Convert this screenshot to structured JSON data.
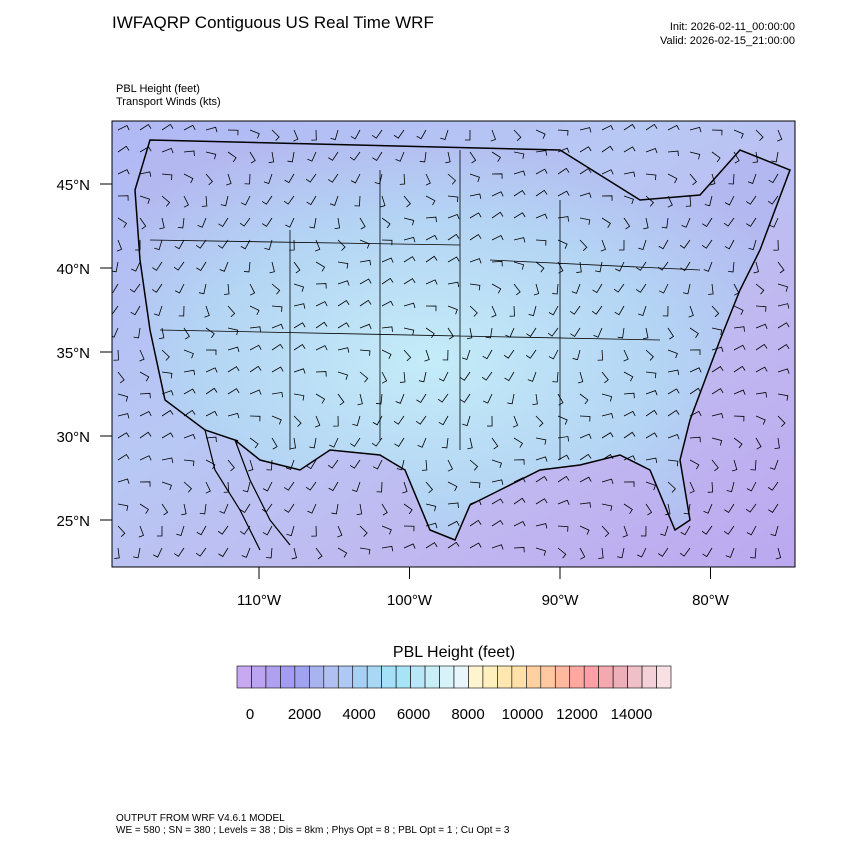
{
  "header": {
    "title": "IWFAQRP Contiguous US Real Time WRF",
    "init": "Init: 2026-02-11_00:00:00",
    "valid": "Valid: 2026-02-15_21:00:00"
  },
  "fields": {
    "primary": "PBL Height   (feet)",
    "secondary": "Transport Winds   (kts)"
  },
  "map": {
    "lat_labels": [
      "45°N",
      "40°N",
      "35°N",
      "30°N",
      "25°N"
    ],
    "lon_labels": [
      "110°W",
      "100°W",
      "90°W",
      "80°W"
    ]
  },
  "colorbar": {
    "title": "PBL Height  (feet)",
    "labels": [
      0,
      2000,
      4000,
      6000,
      8000,
      10000,
      12000,
      14000
    ],
    "colors": [
      "#c8a8f0",
      "#bba4f0",
      "#b0a0f0",
      "#a49cf0",
      "#a0a4f0",
      "#a8b4f0",
      "#b0c0f0",
      "#b0c8f4",
      "#a8d0f4",
      "#a8d8f4",
      "#a4e0f8",
      "#a8e4f8",
      "#b8e8f8",
      "#c8eef8",
      "#d8f2fa",
      "#e8f6fc",
      "#fff4d0",
      "#fff0c0",
      "#ffe8b0",
      "#ffe0a8",
      "#ffd0a0",
      "#ffc8a0",
      "#ffb8a0",
      "#ffa8a0",
      "#ffa0a8",
      "#f4a8b0",
      "#eeb0b8",
      "#f0c0c8",
      "#f4d0d8",
      "#f8e0e4"
    ]
  },
  "footer": {
    "line1": "OUTPUT FROM WRF V4.6.1 MODEL",
    "line2": "WE = 580 ; SN = 380 ; Levels = 38 ; Dis = 8km ; Phys Opt = 8 ; PBL Opt = 1 ; Cu Opt = 3"
  }
}
